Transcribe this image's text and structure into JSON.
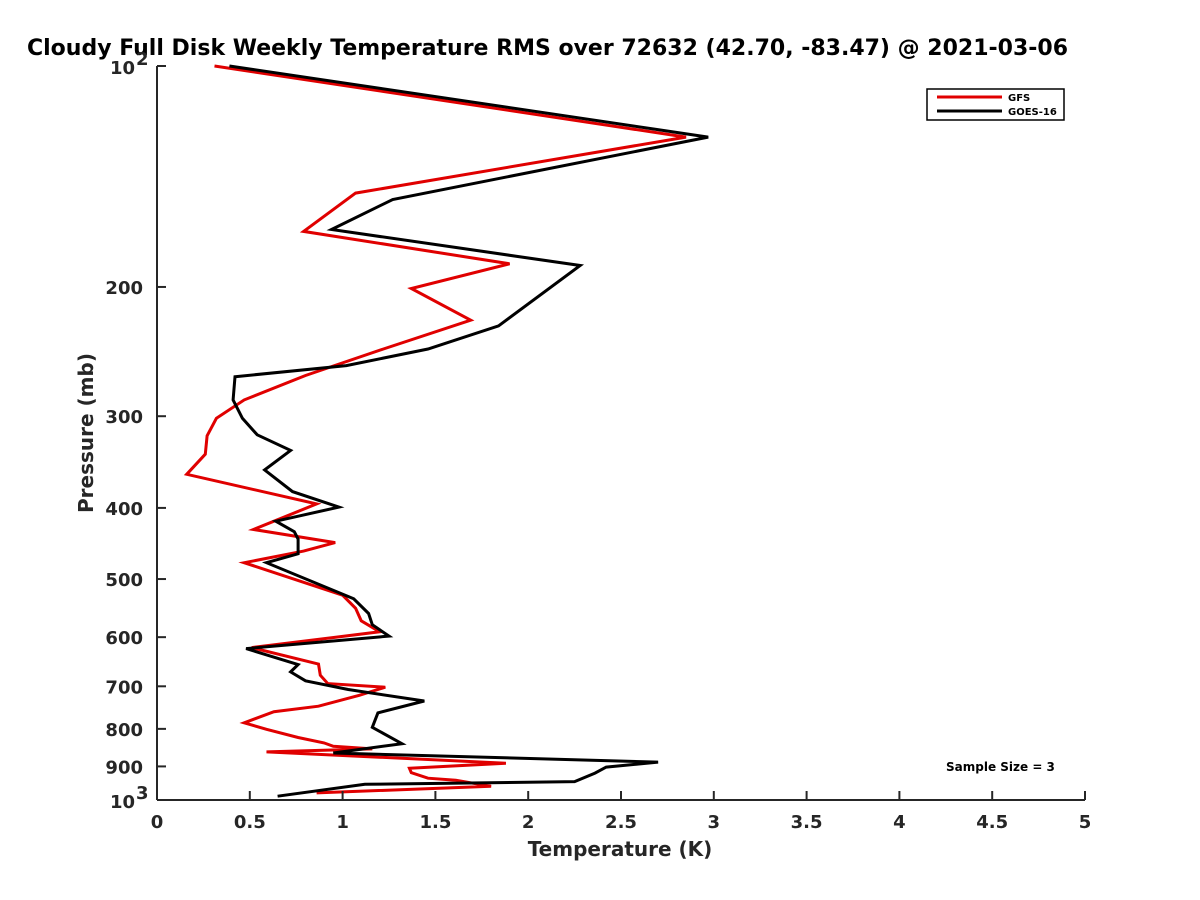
{
  "chart_data": {
    "type": "line",
    "title": "Cloudy Full Disk Weekly Temperature RMS over 72632 (42.70, -83.47) @ 2021-03-06",
    "xlabel": "Temperature (K)",
    "ylabel": "Pressure (mb)",
    "xlim": [
      0,
      5
    ],
    "ylim": [
      100,
      1000
    ],
    "yscale": "log",
    "yreversed": true,
    "grid": false,
    "legend_position": "top-right",
    "xticks": [
      "0",
      "0.5",
      "1",
      "1.5",
      "2",
      "2.5",
      "3",
      "3.5",
      "4",
      "4.5",
      "5"
    ],
    "xtick_values": [
      0,
      0.5,
      1,
      1.5,
      2,
      2.5,
      3,
      3.5,
      4,
      4.5,
      5
    ],
    "yticks": [
      {
        "value": 100,
        "base": "10",
        "exp": "2"
      },
      {
        "value": 200,
        "base": "200",
        "exp": ""
      },
      {
        "value": 300,
        "base": "300",
        "exp": ""
      },
      {
        "value": 400,
        "base": "400",
        "exp": ""
      },
      {
        "value": 500,
        "base": "500",
        "exp": ""
      },
      {
        "value": 600,
        "base": "600",
        "exp": ""
      },
      {
        "value": 700,
        "base": "700",
        "exp": ""
      },
      {
        "value": 800,
        "base": "800",
        "exp": ""
      },
      {
        "value": 900,
        "base": "900",
        "exp": ""
      },
      {
        "value": 1000,
        "base": "10",
        "exp": "3"
      }
    ],
    "annotation": "Sample Size = 3",
    "series": [
      {
        "name": "GFS",
        "color": "#e00000",
        "points": [
          [
            0.31,
            100
          ],
          [
            2.85,
            125
          ],
          [
            1.07,
            149
          ],
          [
            0.79,
            168
          ],
          [
            1.9,
            186
          ],
          [
            1.37,
            201
          ],
          [
            1.69,
            222
          ],
          [
            1.22,
            243
          ],
          [
            0.8,
            264
          ],
          [
            0.47,
            285
          ],
          [
            0.32,
            302
          ],
          [
            0.27,
            319
          ],
          [
            0.26,
            338
          ],
          [
            0.16,
            360
          ],
          [
            0.86,
            395
          ],
          [
            0.52,
            428
          ],
          [
            0.96,
            446
          ],
          [
            0.79,
            458
          ],
          [
            0.47,
            475
          ],
          [
            1.0,
            526
          ],
          [
            1.07,
            548
          ],
          [
            1.1,
            570
          ],
          [
            1.2,
            590
          ],
          [
            0.51,
            620
          ],
          [
            0.87,
            653
          ],
          [
            0.88,
            676
          ],
          [
            0.92,
            694
          ],
          [
            1.23,
            702
          ],
          [
            1.09,
            720
          ],
          [
            0.87,
            745
          ],
          [
            0.63,
            758
          ],
          [
            0.47,
            785
          ],
          [
            0.59,
            801
          ],
          [
            0.76,
            822
          ],
          [
            0.9,
            836
          ],
          [
            0.95,
            845
          ],
          [
            1.16,
            852
          ],
          [
            0.59,
            860
          ],
          [
            1.88,
            891
          ],
          [
            1.36,
            905
          ],
          [
            1.37,
            918
          ],
          [
            1.46,
            934
          ],
          [
            1.61,
            940
          ],
          [
            1.8,
            958
          ],
          [
            0.86,
            978
          ]
        ]
      },
      {
        "name": "GOES-16",
        "color": "#000000",
        "points": [
          [
            0.39,
            100
          ],
          [
            2.97,
            125
          ],
          [
            1.27,
            152
          ],
          [
            0.94,
            167
          ],
          [
            2.28,
            187
          ],
          [
            1.84,
            226
          ],
          [
            1.46,
            243
          ],
          [
            1.02,
            256
          ],
          [
            0.42,
            265
          ],
          [
            0.41,
            285
          ],
          [
            0.46,
            302
          ],
          [
            0.54,
            318
          ],
          [
            0.72,
            334
          ],
          [
            0.58,
            355
          ],
          [
            0.73,
            380
          ],
          [
            0.98,
            399
          ],
          [
            0.64,
            417
          ],
          [
            0.74,
            431
          ],
          [
            0.76,
            441
          ],
          [
            0.76,
            462
          ],
          [
            0.59,
            475
          ],
          [
            1.06,
            532
          ],
          [
            1.14,
            557
          ],
          [
            1.16,
            577
          ],
          [
            1.25,
            598
          ],
          [
            0.48,
            622
          ],
          [
            0.76,
            654
          ],
          [
            0.72,
            669
          ],
          [
            0.8,
            688
          ],
          [
            1.03,
            707
          ],
          [
            1.44,
            733
          ],
          [
            1.19,
            761
          ],
          [
            1.16,
            796
          ],
          [
            1.32,
            838
          ],
          [
            0.95,
            863
          ],
          [
            2.7,
            888
          ],
          [
            2.42,
            902
          ],
          [
            2.36,
            919
          ],
          [
            2.25,
            944
          ],
          [
            1.12,
            952
          ],
          [
            0.65,
            988
          ]
        ]
      }
    ]
  }
}
